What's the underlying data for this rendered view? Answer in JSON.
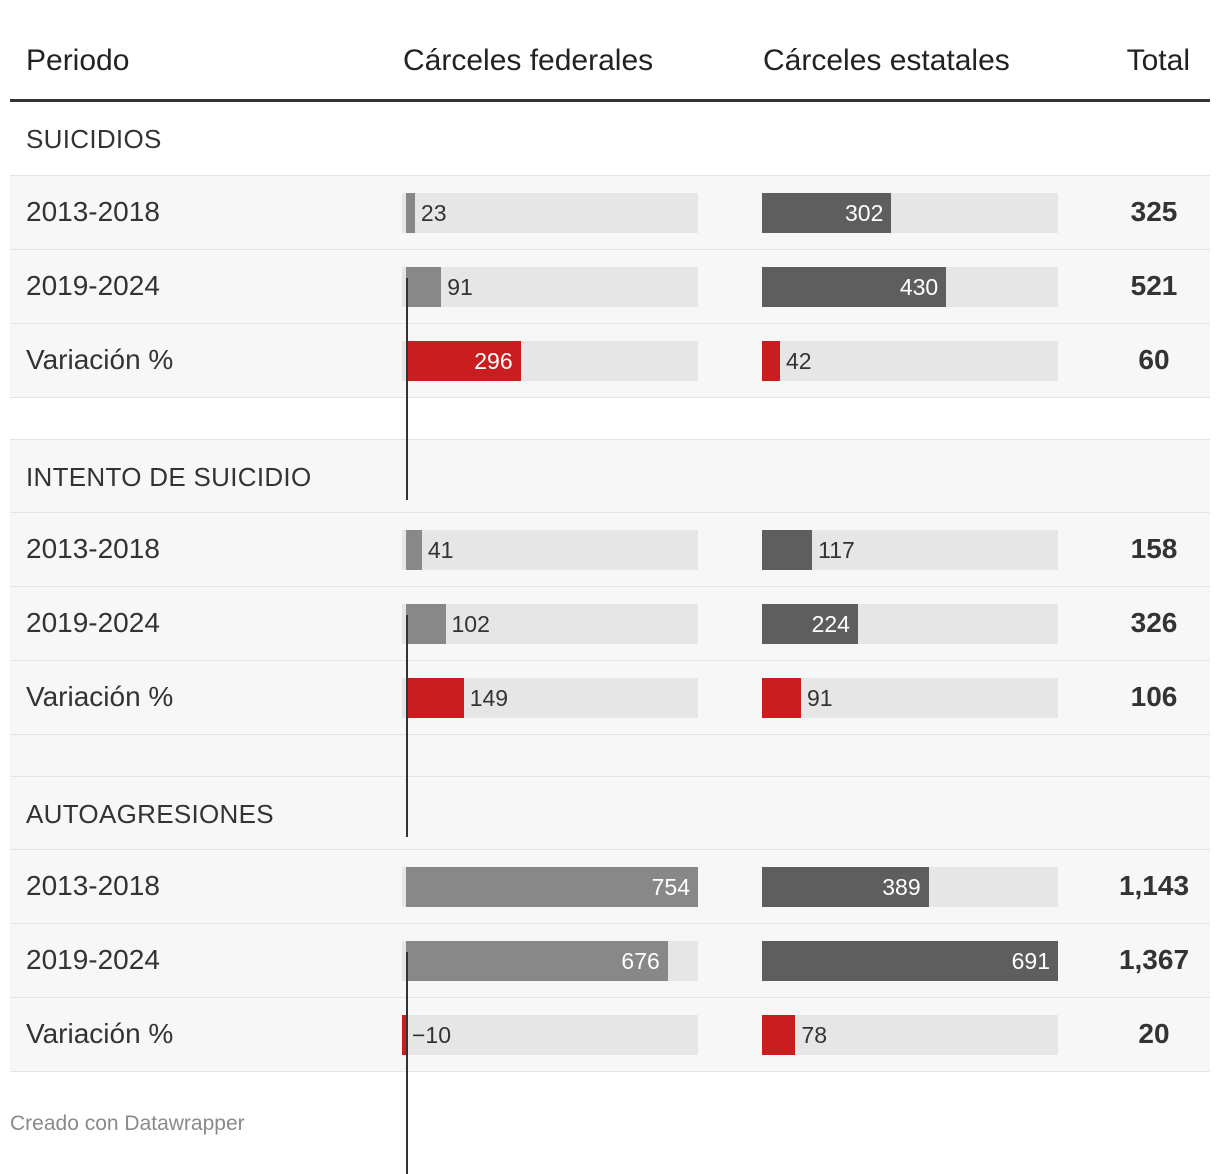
{
  "header": {
    "period": "Periodo",
    "federal": "Cárceles federales",
    "state": "Cárceles estatales",
    "total": "Total"
  },
  "colors": {
    "federal_bar": "#888888",
    "state_bar": "#5e5e5e",
    "variation_bar": "#c91d20",
    "track": "#e6e6e6"
  },
  "chart_data": {
    "type": "table",
    "federal_scale_max": 754,
    "state_scale_max": 691,
    "sections": [
      {
        "title": "SUICIDIOS",
        "rows": [
          {
            "period": "2013-2018",
            "federal": 23,
            "state": 302,
            "total": "325",
            "kind": "count"
          },
          {
            "period": "2019-2024",
            "federal": 91,
            "state": 430,
            "total": "521",
            "kind": "count"
          },
          {
            "period": "Variación %",
            "federal": 296,
            "state": 42,
            "total": "60",
            "kind": "variation"
          }
        ]
      },
      {
        "title": "INTENTO DE SUICIDIO",
        "rows": [
          {
            "period": "2013-2018",
            "federal": 41,
            "state": 117,
            "total": "158",
            "kind": "count"
          },
          {
            "period": "2019-2024",
            "federal": 102,
            "state": 224,
            "total": "326",
            "kind": "count"
          },
          {
            "period": "Variación %",
            "federal": 149,
            "state": 91,
            "total": "106",
            "kind": "variation"
          }
        ]
      },
      {
        "title": "AUTOAGRESIONES",
        "rows": [
          {
            "period": "2013-2018",
            "federal": 754,
            "state": 389,
            "total": "1,143",
            "kind": "count"
          },
          {
            "period": "2019-2024",
            "federal": 676,
            "state": 691,
            "total": "1,367",
            "kind": "count"
          },
          {
            "period": "Variación %",
            "federal": -10,
            "state": 78,
            "total": "20",
            "kind": "variation"
          }
        ]
      }
    ]
  },
  "footer": "Creado con Datawrapper"
}
